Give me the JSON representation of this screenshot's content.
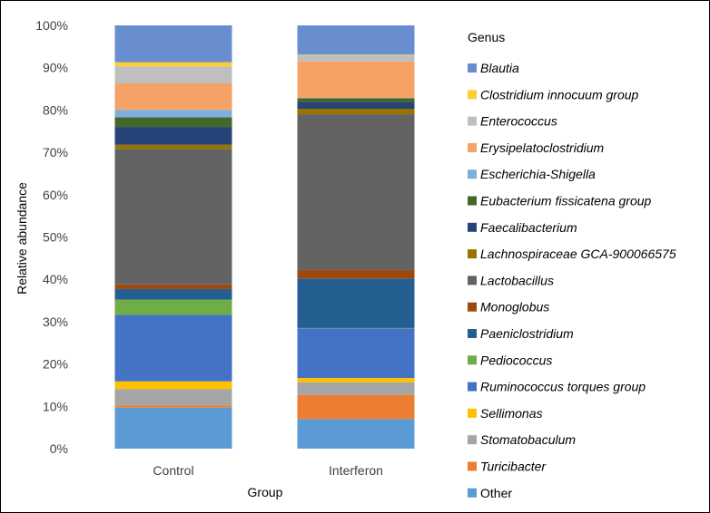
{
  "chart_data": {
    "type": "bar",
    "stacked": true,
    "normalized": true,
    "categories": [
      "Control",
      "Interferon"
    ],
    "xlabel": "Group",
    "ylabel": "Relative abundance",
    "ylim": [
      0,
      100
    ],
    "yticks": [
      0,
      10,
      20,
      30,
      40,
      50,
      60,
      70,
      80,
      90,
      100
    ],
    "ytick_labels": [
      "0%",
      "10%",
      "20%",
      "30%",
      "40%",
      "50%",
      "60%",
      "70%",
      "80%",
      "90%",
      "100%"
    ],
    "grid": false,
    "legend": {
      "title": "Genus",
      "placement": "right"
    },
    "series": [
      {
        "name": "Other",
        "color": "#5B9BD5",
        "italic": false,
        "values": [
          9.7,
          7.0
        ]
      },
      {
        "name": "Turicibacter",
        "color": "#ED7D31",
        "italic": true,
        "values": [
          0.5,
          5.7
        ]
      },
      {
        "name": "Stomatobaculum",
        "color": "#A5A5A5",
        "italic": true,
        "values": [
          3.9,
          3.0
        ]
      },
      {
        "name": "Sellimonas",
        "color": "#FFC000",
        "italic": true,
        "values": [
          1.8,
          1.0
        ]
      },
      {
        "name": "Ruminococcus torques group",
        "color": "#4472C4",
        "italic": true,
        "values": [
          15.7,
          11.7
        ]
      },
      {
        "name": "Pediococcus",
        "color": "#70AD47",
        "italic": true,
        "values": [
          3.6,
          0.1
        ]
      },
      {
        "name": "Paeniclostridium",
        "color": "#255E91",
        "italic": true,
        "values": [
          2.5,
          11.7
        ]
      },
      {
        "name": "Monoglobus",
        "color": "#9E480E",
        "italic": true,
        "values": [
          1.1,
          2.0
        ]
      },
      {
        "name": "Lactobacillus",
        "color": "#636363",
        "italic": true,
        "values": [
          32.0,
          36.8
        ]
      },
      {
        "name": "Lachnospiraceae GCA-900066575",
        "color": "#997300",
        "italic": true,
        "values": [
          1.0,
          1.3
        ]
      },
      {
        "name": "Faecalibacterium",
        "color": "#264478",
        "italic": true,
        "values": [
          4.2,
          1.5
        ]
      },
      {
        "name": "Eubacterium fissicatena group",
        "color": "#43682B",
        "italic": true,
        "values": [
          2.3,
          1.0
        ]
      },
      {
        "name": "Escherichia-Shigella",
        "color": "#7CAFDD",
        "italic": true,
        "values": [
          1.7,
          0.1
        ]
      },
      {
        "name": "Erysipelatoclostridium",
        "color": "#F4A266",
        "italic": true,
        "values": [
          6.3,
          8.6
        ]
      },
      {
        "name": "Enterococcus",
        "color": "#BFBFBF",
        "italic": true,
        "values": [
          4.0,
          1.5
        ]
      },
      {
        "name": "Clostridium innocuum group",
        "color": "#FFCD33",
        "italic": true,
        "values": [
          1.0,
          0.1
        ]
      },
      {
        "name": "Blautia",
        "color": "#698ED0",
        "italic": true,
        "values": [
          8.7,
          6.9
        ]
      }
    ]
  }
}
